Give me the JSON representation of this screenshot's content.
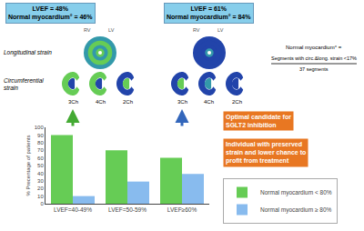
{
  "chart_data": {
    "type": "bar",
    "categories": [
      "LVEF=40-49%",
      "LVEF=50-59%",
      "LVEF≥60%"
    ],
    "series": [
      {
        "name": "Normal myocardium < 80%",
        "color": "#66cc55",
        "values": [
          90,
          70,
          60
        ]
      },
      {
        "name": "Normal myocardium ≥ 80%",
        "color": "#88bbee",
        "values": [
          10,
          29,
          39
        ]
      }
    ],
    "ylabel": "% Precentage of patients",
    "ylim": [
      0,
      100
    ],
    "yticks": [
      0,
      10,
      20,
      30,
      40,
      50,
      60,
      70,
      80,
      90,
      100
    ],
    "grid": false,
    "legend": "right",
    "annotations": [
      "LVEF = 48%\nNormal myocardium° = 46%",
      "LVEF = 61%\nNormal myocardium° = 84%",
      "Longitudinal strain",
      "Circumferential\nstrain",
      "Normal myocardium° =",
      "Segments with circ.&long. strain <17%",
      "37 segments",
      "RV",
      "LV",
      "RV",
      "LV",
      "3Ch",
      "4Ch",
      "2Ch",
      "3Ch",
      "4Ch",
      "2Ch",
      "Optimal candidate for\nSGLT2 inhibition",
      "Individual with preserved\nstrain and lower chance to\nprofit from treatment"
    ]
  }
}
